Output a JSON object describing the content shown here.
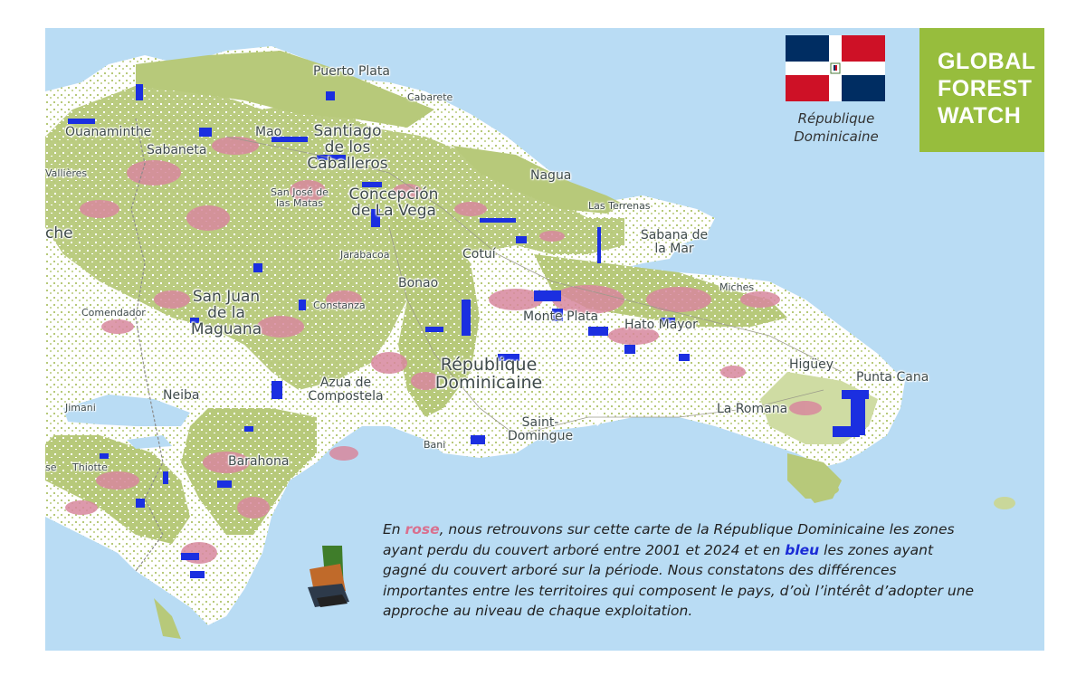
{
  "map": {
    "colors": {
      "sea": "#b9dcf4",
      "land": "#ffffff",
      "forest": "#b7c97a",
      "loss": "#d8889e",
      "gain": "#1b2fe0",
      "border": "#8a8a8a"
    },
    "labels": {
      "puerto_plata": "Puerto Plata",
      "cabarete": "Cabarete",
      "ouanaminthe": "Ouanaminthe",
      "sabaneta": "Sabaneta",
      "mao": "Mao",
      "santiago": "Santiago de los Caballeros",
      "nagua": "Nagua",
      "vallieres": "Vallières",
      "san_jose": "San José de las Matas",
      "concepcion": "Concepción de La Vega",
      "las_terrenas": "Las Terrenas",
      "sabana": "Sabana de la Mar",
      "che": "che",
      "jarabacoa": "Jarabacoa",
      "cotui": "Cotuí",
      "bonao": "Bonao",
      "miches": "Miches",
      "san_juan": "San Juan de la Maguana",
      "comendador": "Comendador",
      "constanza": "Constanza",
      "monte_plata": "Monte Plata",
      "hato_mayor": "Hato Mayor",
      "republique": "République Dominicaine",
      "higuey": "Higüey",
      "punta_cana": "Punta Cana",
      "azua": "Azua de Compostela",
      "neiba": "Neiba",
      "jimani": "Jimani",
      "la_romana": "La Romana",
      "saint_domingue": "Saint-Domingue",
      "bani": "Bani",
      "thiotte": "Thiotte",
      "se": "se",
      "barahona": "Barahona"
    }
  },
  "flag_card": {
    "caption": "République Dominicaine"
  },
  "gfw_logo": {
    "lines": [
      "GLOBAL",
      "FOREST",
      "WATCH"
    ]
  },
  "caption": {
    "part1": "En ",
    "rose": "rose",
    "part2": ", nous retrouvons sur cette carte de la République Dominicaine les zones ayant perdu du couvert arboré entre 2001 et 2024 et en ",
    "bleu": "bleu",
    "part3": " les zones ayant gagné du couvert arboré sur la période. Nous constatons des différences importantes entre les territoires qui composent le pays, d’où l’intérêt d’adopter une approche au niveau de chaque exploitation."
  }
}
